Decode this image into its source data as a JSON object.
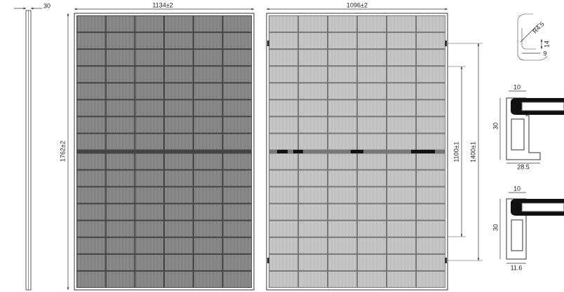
{
  "side_view": {
    "thickness": "30"
  },
  "front_view": {
    "width": "1134±2",
    "height": "1762±2"
  },
  "back_view": {
    "width": "1096±2",
    "mount_inner": "1100±1",
    "mount_outer": "1400±1"
  },
  "corner_detail": {
    "radius": "R4.5",
    "height": "14",
    "width": "9"
  },
  "frame_long": {
    "top": "10",
    "height": "30",
    "width": "28.5"
  },
  "frame_short": {
    "top": "10",
    "height": "30",
    "width": "11.6"
  }
}
